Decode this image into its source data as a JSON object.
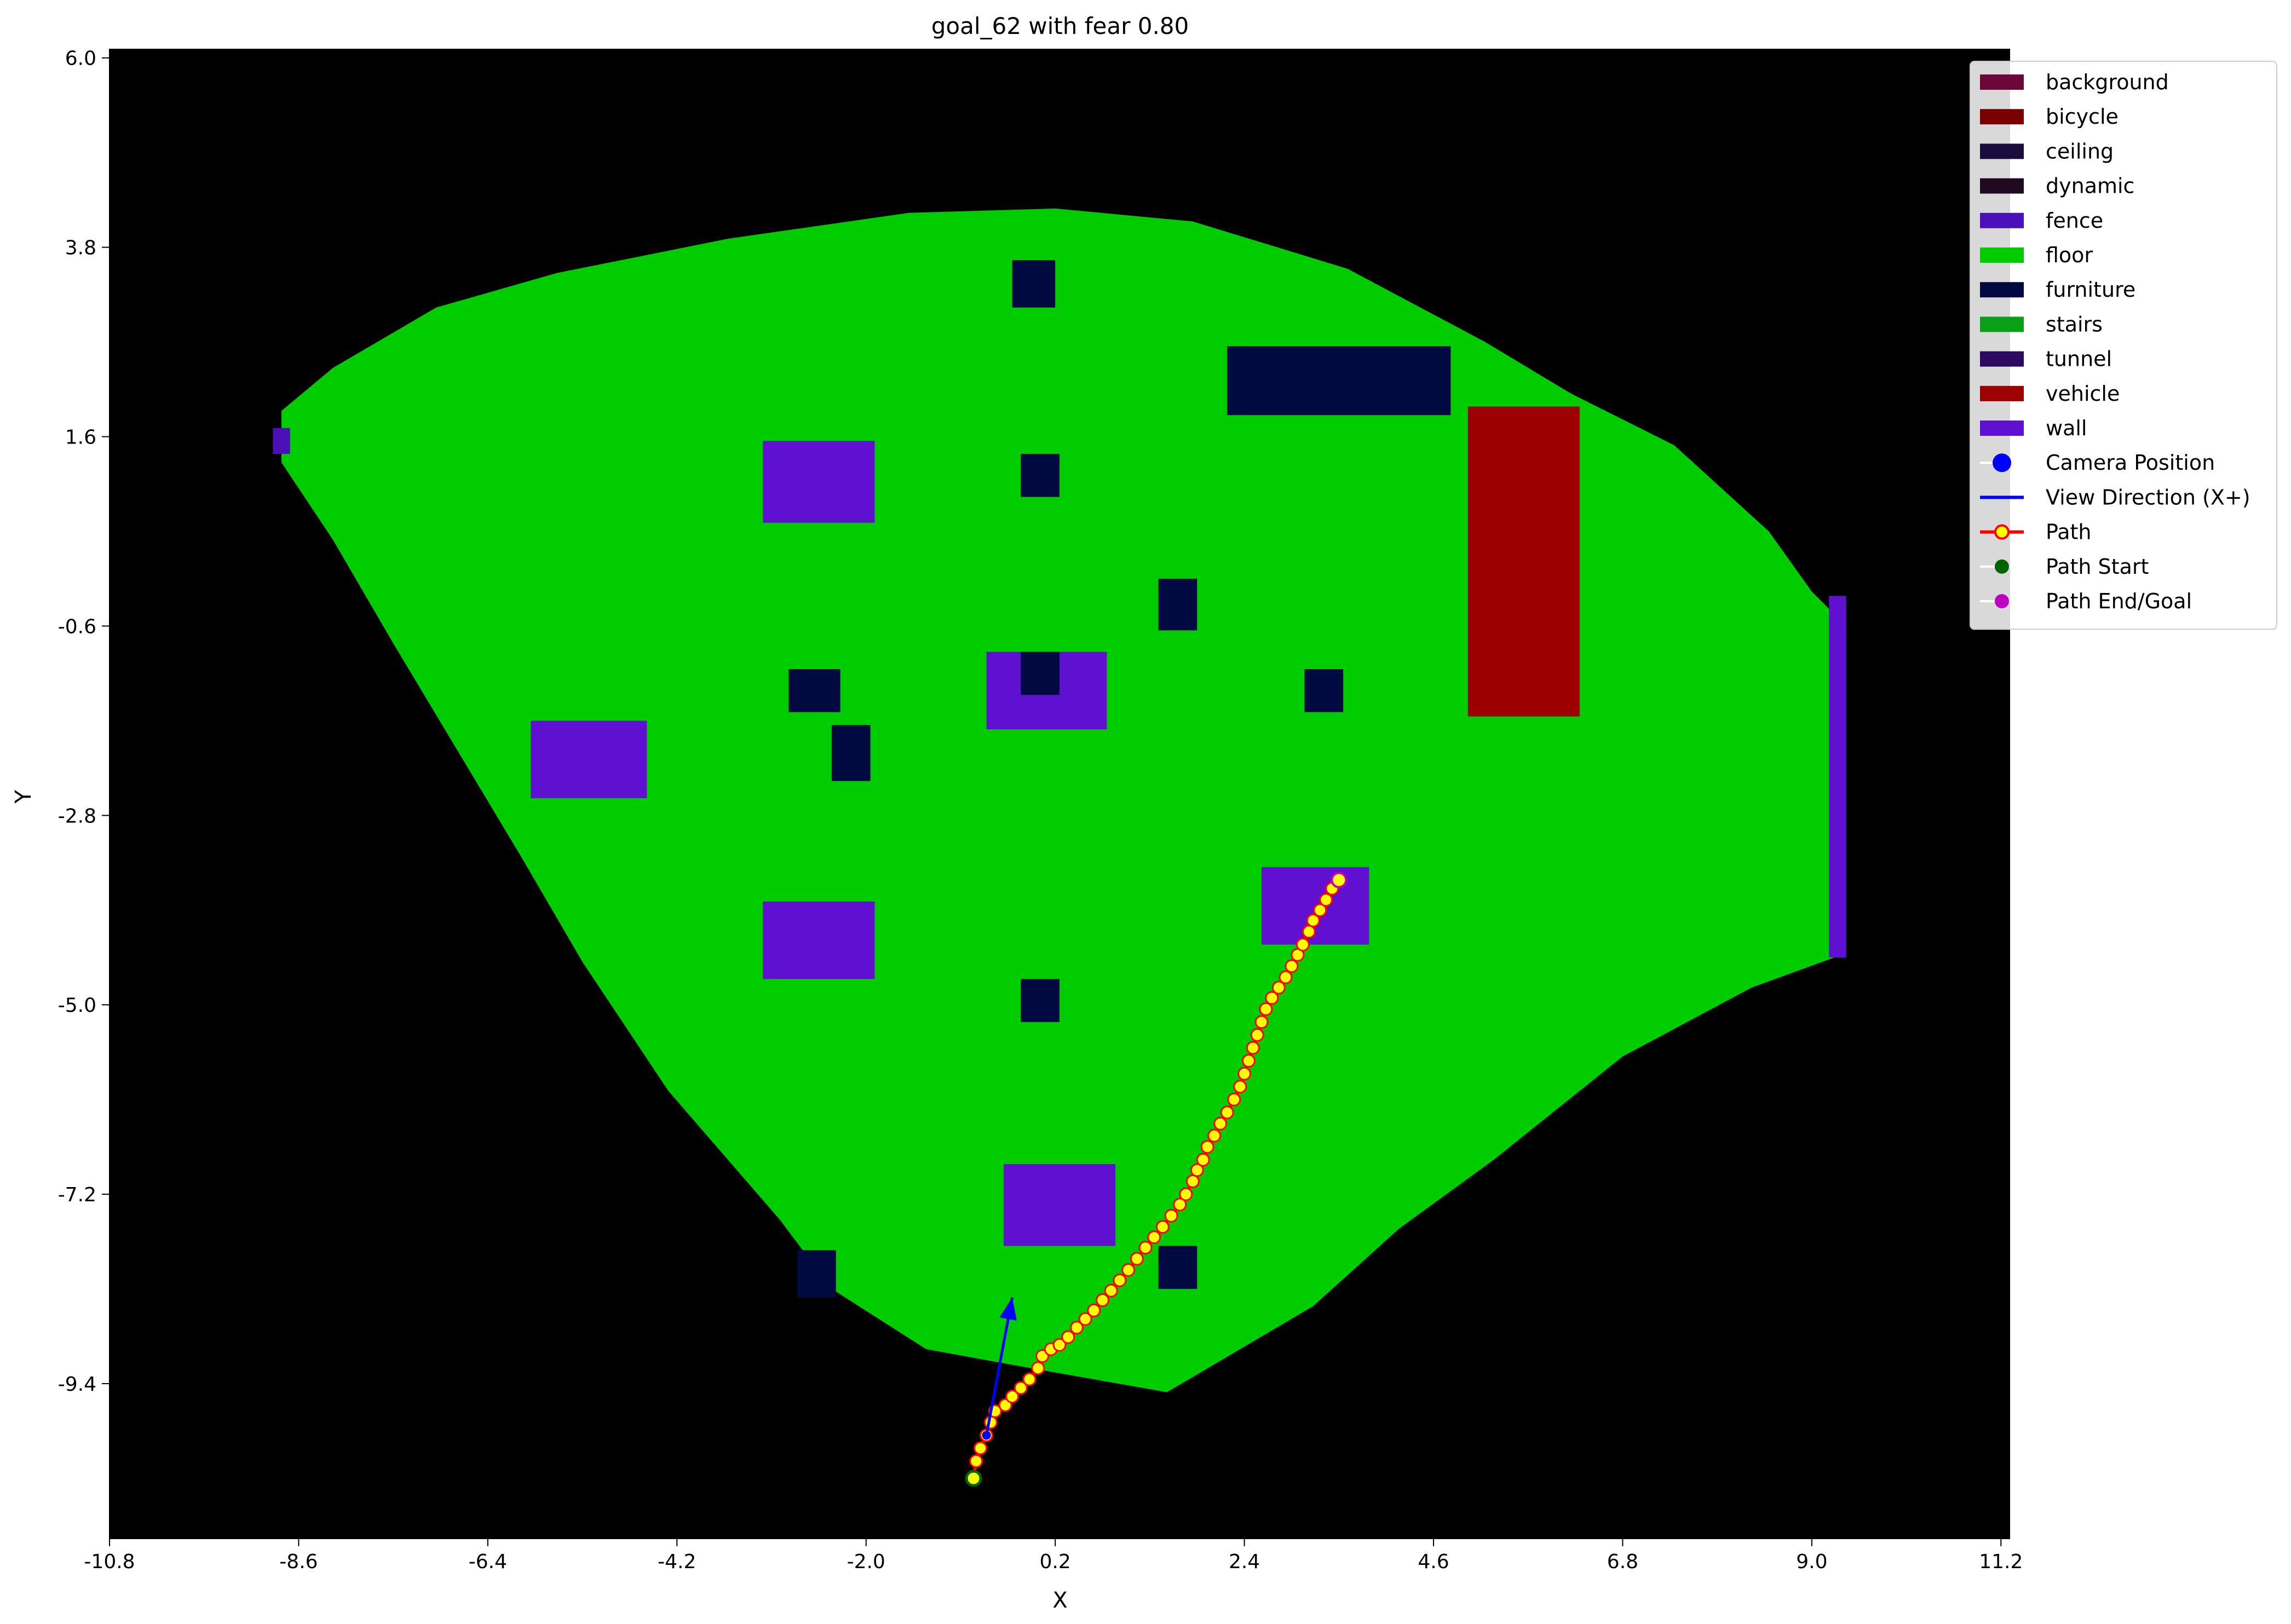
{
  "chart_data": {
    "type": "scatter",
    "title": "goal_62 with fear 0.80",
    "xlabel": "X",
    "ylabel": "Y",
    "xlim": [
      -10.8,
      11.3
    ],
    "ylim": [
      -11.2,
      6.1
    ],
    "xticks": [
      "-10.8",
      "-8.6",
      "-6.4",
      "-4.2",
      "-2.0",
      "0.2",
      "2.4",
      "4.6",
      "6.8",
      "9.0",
      "11.2"
    ],
    "yticks": [
      "6.0",
      "3.8",
      "1.6",
      "-0.6",
      "-2.8",
      "-5.0",
      "-7.2",
      "-9.4"
    ],
    "map_background": "#000000",
    "floor_region": {
      "color": "#00cc00",
      "outline": [
        [
          -8.8,
          1.9
        ],
        [
          -8.2,
          2.4
        ],
        [
          -7.0,
          3.1
        ],
        [
          -5.6,
          3.5
        ],
        [
          -3.6,
          3.9
        ],
        [
          -1.5,
          4.2
        ],
        [
          0.2,
          4.25
        ],
        [
          1.8,
          4.1
        ],
        [
          3.6,
          3.55
        ],
        [
          5.2,
          2.7
        ],
        [
          6.2,
          2.1
        ],
        [
          7.4,
          1.5
        ],
        [
          8.5,
          0.5
        ],
        [
          9.0,
          -0.2
        ],
        [
          9.4,
          -0.6
        ],
        [
          9.4,
          -4.4
        ],
        [
          8.3,
          -4.8
        ],
        [
          6.8,
          -5.6
        ],
        [
          5.3,
          -6.8
        ],
        [
          4.2,
          -7.6
        ],
        [
          3.2,
          -8.5
        ],
        [
          1.5,
          -9.5
        ],
        [
          -0.2,
          -9.2
        ],
        [
          -1.3,
          -9.0
        ],
        [
          -2.4,
          -8.3
        ],
        [
          -3.0,
          -7.5
        ],
        [
          -4.3,
          -6.0
        ],
        [
          -5.3,
          -4.5
        ],
        [
          -6.0,
          -3.3
        ],
        [
          -6.9,
          -1.8
        ],
        [
          -7.5,
          -0.8
        ],
        [
          -8.2,
          0.4
        ],
        [
          -8.8,
          1.3
        ]
      ]
    },
    "objects": [
      {
        "class": "wall",
        "x": -3.2,
        "y": 0.6,
        "w": 1.3,
        "h": 0.95
      },
      {
        "class": "wall",
        "x": -0.6,
        "y": -1.8,
        "w": 1.4,
        "h": 0.9
      },
      {
        "class": "wall",
        "x": -5.9,
        "y": -2.6,
        "w": 1.35,
        "h": 0.9
      },
      {
        "class": "wall",
        "x": -3.2,
        "y": -4.7,
        "w": 1.3,
        "h": 0.9
      },
      {
        "class": "wall",
        "x": -0.4,
        "y": -7.8,
        "w": 1.3,
        "h": 0.95
      },
      {
        "class": "wall",
        "x": 2.6,
        "y": -4.3,
        "w": 1.25,
        "h": 0.9
      },
      {
        "class": "wall",
        "x": 9.2,
        "y": -4.45,
        "w": 0.2,
        "h": 4.2
      },
      {
        "class": "fence",
        "x": -8.9,
        "y": 1.4,
        "w": 0.2,
        "h": 0.3
      },
      {
        "class": "furniture",
        "x": -0.3,
        "y": 3.1,
        "w": 0.5,
        "h": 0.55
      },
      {
        "class": "furniture",
        "x": -0.2,
        "y": 0.9,
        "w": 0.45,
        "h": 0.5
      },
      {
        "class": "furniture",
        "x": 1.4,
        "y": -0.65,
        "w": 0.45,
        "h": 0.6
      },
      {
        "class": "furniture",
        "x": -0.2,
        "y": -1.4,
        "w": 0.45,
        "h": 0.5
      },
      {
        "class": "furniture",
        "x": -2.9,
        "y": -1.6,
        "w": 0.6,
        "h": 0.5
      },
      {
        "class": "furniture",
        "x": -2.4,
        "y": -2.4,
        "w": 0.45,
        "h": 0.65
      },
      {
        "class": "furniture",
        "x": 3.1,
        "y": -1.6,
        "w": 0.45,
        "h": 0.5
      },
      {
        "class": "furniture",
        "x": -0.2,
        "y": -5.2,
        "w": 0.45,
        "h": 0.5
      },
      {
        "class": "furniture",
        "x": -2.8,
        "y": -8.4,
        "w": 0.45,
        "h": 0.55
      },
      {
        "class": "furniture",
        "x": 1.4,
        "y": -8.3,
        "w": 0.45,
        "h": 0.5
      },
      {
        "class": "furniture",
        "x": 2.2,
        "y": 1.85,
        "w": 2.6,
        "h": 0.8
      },
      {
        "class": "vehicle",
        "x": 5.0,
        "y": -1.65,
        "w": 1.3,
        "h": 3.6
      }
    ],
    "path": {
      "name": "Path",
      "line_color": "#ff0000",
      "marker_face": "#ffff00",
      "points": [
        [
          -0.75,
          -10.5
        ],
        [
          -0.72,
          -10.3
        ],
        [
          -0.67,
          -10.15
        ],
        [
          -0.6,
          -10.0
        ],
        [
          -0.55,
          -9.85
        ],
        [
          -0.5,
          -9.72
        ],
        [
          -0.38,
          -9.65
        ],
        [
          -0.3,
          -9.55
        ],
        [
          -0.2,
          -9.45
        ],
        [
          -0.1,
          -9.35
        ],
        [
          0.0,
          -9.22
        ],
        [
          0.05,
          -9.08
        ],
        [
          0.15,
          -9.0
        ],
        [
          0.25,
          -8.95
        ],
        [
          0.35,
          -8.86
        ],
        [
          0.45,
          -8.75
        ],
        [
          0.55,
          -8.65
        ],
        [
          0.65,
          -8.55
        ],
        [
          0.75,
          -8.43
        ],
        [
          0.85,
          -8.32
        ],
        [
          0.95,
          -8.2
        ],
        [
          1.05,
          -8.08
        ],
        [
          1.15,
          -7.95
        ],
        [
          1.25,
          -7.82
        ],
        [
          1.35,
          -7.7
        ],
        [
          1.45,
          -7.58
        ],
        [
          1.55,
          -7.45
        ],
        [
          1.65,
          -7.32
        ],
        [
          1.72,
          -7.2
        ],
        [
          1.8,
          -7.05
        ],
        [
          1.85,
          -6.92
        ],
        [
          1.92,
          -6.8
        ],
        [
          1.97,
          -6.65
        ],
        [
          2.05,
          -6.52
        ],
        [
          2.12,
          -6.38
        ],
        [
          2.2,
          -6.25
        ],
        [
          2.28,
          -6.1
        ],
        [
          2.35,
          -5.95
        ],
        [
          2.4,
          -5.8
        ],
        [
          2.45,
          -5.65
        ],
        [
          2.5,
          -5.5
        ],
        [
          2.55,
          -5.35
        ],
        [
          2.6,
          -5.2
        ],
        [
          2.65,
          -5.05
        ],
        [
          2.72,
          -4.92
        ],
        [
          2.8,
          -4.8
        ],
        [
          2.88,
          -4.68
        ],
        [
          2.95,
          -4.55
        ],
        [
          3.02,
          -4.42
        ],
        [
          3.08,
          -4.3
        ],
        [
          3.15,
          -4.15
        ],
        [
          3.2,
          -4.02
        ],
        [
          3.28,
          -3.9
        ],
        [
          3.35,
          -3.78
        ],
        [
          3.42,
          -3.65
        ],
        [
          3.5,
          -3.55
        ]
      ]
    },
    "camera": {
      "x": -0.6,
      "y": -10.0,
      "direction": [
        0.3,
        1.6
      ],
      "color": "#0000ff"
    },
    "path_start": {
      "x": -0.75,
      "y": -10.5,
      "color": "#006400"
    },
    "path_end": {
      "x": 3.5,
      "y": -3.55,
      "color": "#c000c0"
    },
    "legend": {
      "placement": "upper-right",
      "entries": [
        {
          "label": "background",
          "kind": "patch",
          "color": "#6b0838"
        },
        {
          "label": "bicycle",
          "kind": "patch",
          "color": "#7a0000"
        },
        {
          "label": "ceiling",
          "kind": "patch",
          "color": "#1a0c3c"
        },
        {
          "label": "dynamic",
          "kind": "patch",
          "color": "#200a20"
        },
        {
          "label": "fence",
          "kind": "patch",
          "color": "#4c10b8"
        },
        {
          "label": "floor",
          "kind": "patch",
          "color": "#00cc00"
        },
        {
          "label": "furniture",
          "kind": "patch",
          "color": "#000a40"
        },
        {
          "label": "stairs",
          "kind": "patch",
          "color": "#099f19"
        },
        {
          "label": "tunnel",
          "kind": "patch",
          "color": "#2c0a60"
        },
        {
          "label": "vehicle",
          "kind": "patch",
          "color": "#9c0000"
        },
        {
          "label": "wall",
          "kind": "patch",
          "color": "#6010d0"
        },
        {
          "label": "Camera Position",
          "kind": "dot",
          "color": "#0000ff"
        },
        {
          "label": "View Direction (X+)",
          "kind": "line",
          "color": "#0000ff"
        },
        {
          "label": "Path",
          "kind": "path",
          "color": "#ff0000"
        },
        {
          "label": "Path Start",
          "kind": "dot-small",
          "color": "#006400"
        },
        {
          "label": "Path End/Goal",
          "kind": "dot-small",
          "color": "#c000c0"
        }
      ]
    }
  }
}
